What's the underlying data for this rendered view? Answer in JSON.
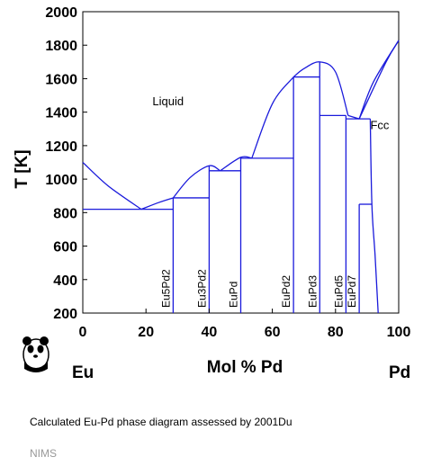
{
  "chart_data": {
    "type": "phase-diagram",
    "ylabel": "T [K]",
    "xlabel": "Mol % Pd",
    "x_end_left": "Eu",
    "x_end_right": "Pd",
    "xlim": [
      0,
      100
    ],
    "ylim": [
      200,
      2000
    ],
    "xticks": [
      "0",
      "20",
      "40",
      "60",
      "80",
      "100"
    ],
    "yticks": [
      "200",
      "400",
      "600",
      "800",
      "1000",
      "1200",
      "1400",
      "1600",
      "1800",
      "2000"
    ],
    "grid": false,
    "line_color": "#1a1adb",
    "region_labels": [
      {
        "text": "Liquid",
        "x": 27,
        "y": 1440
      },
      {
        "text": "Fcc",
        "x": 94,
        "y": 1300
      }
    ],
    "curves": [
      {
        "name": "liquidus-eu",
        "points": [
          [
            0,
            1100
          ],
          [
            8,
            960
          ],
          [
            18.5,
            820
          ]
        ]
      },
      {
        "name": "liquidus-eu5pd2",
        "points": [
          [
            18.5,
            820
          ],
          [
            24,
            860
          ],
          [
            28.6,
            888
          ]
        ]
      },
      {
        "name": "liquidus-eu3pd2",
        "points": [
          [
            28.6,
            888
          ],
          [
            34,
            1010
          ],
          [
            40,
            1080
          ],
          [
            43.5,
            1050
          ]
        ]
      },
      {
        "name": "liquidus-eupd",
        "points": [
          [
            43.5,
            1050
          ],
          [
            50,
            1130
          ],
          [
            53.5,
            1125
          ]
        ]
      },
      {
        "name": "liquidus-eupd2",
        "points": [
          [
            53.5,
            1125
          ],
          [
            60,
            1450
          ],
          [
            66.7,
            1610
          ]
        ]
      },
      {
        "name": "liquidus-eupd3",
        "points": [
          [
            66.7,
            1610
          ],
          [
            70,
            1660
          ],
          [
            75,
            1700
          ],
          [
            80,
            1640
          ],
          [
            84,
            1380
          ]
        ]
      },
      {
        "name": "liquidus-eupd5",
        "points": [
          [
            84,
            1380
          ],
          [
            87.5,
            1360
          ]
        ]
      },
      {
        "name": "liquidus-pd",
        "points": [
          [
            87.5,
            1360
          ],
          [
            92,
            1580
          ],
          [
            100,
            1828
          ]
        ]
      },
      {
        "name": "solidus-pd",
        "points": [
          [
            87.5,
            1360
          ],
          [
            96,
            1700
          ],
          [
            100,
            1828
          ]
        ]
      },
      {
        "name": "fcc-solvus",
        "points": [
          [
            91,
            1360
          ],
          [
            91.5,
            850
          ],
          [
            92.5,
            550
          ],
          [
            93.5,
            200
          ]
        ]
      }
    ],
    "invariant_lines": [
      {
        "name": "eutectic-eu-eu5pd2",
        "x1": 0,
        "x2": 28.6,
        "y": 820
      },
      {
        "name": "peritectic-eu3pd2",
        "x1": 28.6,
        "x2": 40,
        "y": 888
      },
      {
        "name": "eutectic-eu3pd2-eupd",
        "x1": 40,
        "x2": 50,
        "y": 1050
      },
      {
        "name": "eutectic-eupd-eupd2",
        "x1": 50,
        "x2": 66.7,
        "y": 1125
      },
      {
        "name": "eutectic-eupd2-eupd3",
        "x1": 66.7,
        "x2": 75,
        "y": 1610
      },
      {
        "name": "eutectic-eupd3-eupd5",
        "x1": 75,
        "x2": 83.3,
        "y": 1380
      },
      {
        "name": "eutectic-eupd5-fcc",
        "x1": 83.3,
        "x2": 91,
        "y": 1360
      },
      {
        "name": "peritectoid-eupd7",
        "x1": 87.5,
        "x2": 91.5,
        "y": 850
      }
    ],
    "compounds": [
      {
        "label": "Eu5Pd2",
        "x": 28.6,
        "top": 888
      },
      {
        "label": "Eu3Pd2",
        "x": 40,
        "top": 1080
      },
      {
        "label": "EuPd",
        "x": 50,
        "top": 1130
      },
      {
        "label": "EuPd2",
        "x": 66.7,
        "top": 1610
      },
      {
        "label": "EuPd3",
        "x": 75,
        "top": 1700
      },
      {
        "label": "EuPd5",
        "x": 83.3,
        "top": 1380
      },
      {
        "label": "EuPd7",
        "x": 87.5,
        "top": 850
      }
    ]
  },
  "caption": "Calculated Eu-Pd phase diagram assessed by 2001Du",
  "source": "NIMS",
  "logo_icon": "panda-logo-icon"
}
